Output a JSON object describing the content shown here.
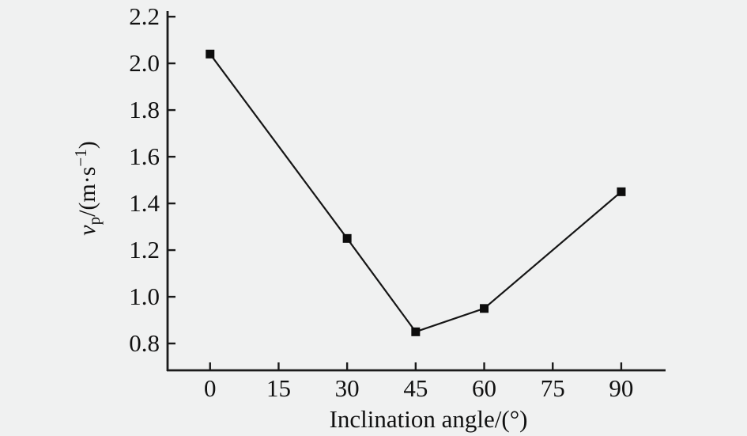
{
  "colors": {
    "background": "#f0f1f1",
    "axis": "#1b1b1b",
    "series": "#161616",
    "marker": "#0d0d0d",
    "text": "#111111"
  },
  "chart_data": {
    "type": "line",
    "x": [
      0,
      30,
      45,
      60,
      90
    ],
    "values": [
      2.04,
      1.25,
      0.85,
      0.95,
      1.45
    ],
    "marker": "filled-square",
    "title": "",
    "xlabel": "Inclination angle/(°)",
    "ylabel": "v_p/(m·s⁻¹)",
    "ylabel_parts": {
      "variable": "v",
      "subscript": "p",
      "unit_open": "/(m·s",
      "superscript": "−1",
      "unit_close": ")"
    },
    "x_ticks": [
      0,
      15,
      30,
      45,
      60,
      75,
      90
    ],
    "x_tick_labels": [
      "0",
      "15",
      "30",
      "45",
      "60",
      "75",
      "90"
    ],
    "y_ticks": [
      0.8,
      1.0,
      1.2,
      1.4,
      1.6,
      1.8,
      2.0,
      2.2
    ],
    "y_tick_labels": [
      "0.8",
      "1.0",
      "1.2",
      "1.4",
      "1.6",
      "1.8",
      "2.0",
      "2.2"
    ],
    "xlim": [
      -9.3,
      99.7
    ],
    "ylim": [
      0.685,
      2.224
    ],
    "grid": false,
    "legend": "none"
  }
}
